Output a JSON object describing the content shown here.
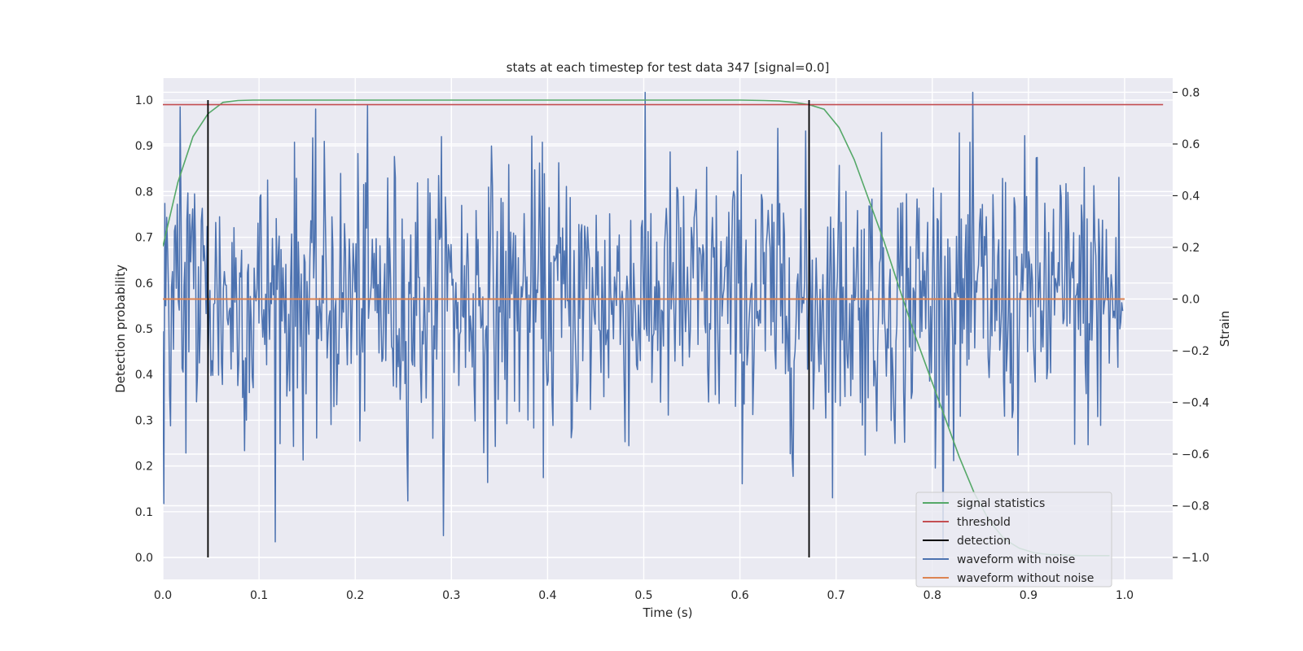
{
  "chart_data": {
    "type": "line",
    "title": "stats at each timestep for test data 347 [signal=0.0]",
    "xlabel": "Time (s)",
    "ylabel": "Detection probability",
    "ylabel_right": "Strain",
    "xlim": [
      0.0,
      1.05
    ],
    "ylim": [
      -0.048,
      1.048
    ],
    "ylim_right": [
      -1.085,
      0.855
    ],
    "x_ticks": [
      "0.0",
      "0.1",
      "0.2",
      "0.3",
      "0.4",
      "0.5",
      "0.6",
      "0.7",
      "0.8",
      "0.9",
      "1.0"
    ],
    "y_ticks": [
      "0.0",
      "0.1",
      "0.2",
      "0.3",
      "0.4",
      "0.5",
      "0.6",
      "0.7",
      "0.8",
      "0.9",
      "1.0"
    ],
    "y_ticks_right": [
      "−1.0",
      "−0.8",
      "−0.6",
      "−0.4",
      "−0.2",
      "0.0",
      "0.2",
      "0.4",
      "0.6",
      "0.8"
    ],
    "grid": true,
    "legend_position": "bottom-right",
    "series": [
      {
        "name": "signal statistics",
        "color": "#55a868",
        "axis": "left",
        "x": [
          0.0,
          0.0156,
          0.0313,
          0.0469,
          0.0625,
          0.0781,
          0.0938,
          0.1094,
          0.125,
          0.2,
          0.3,
          0.4,
          0.5,
          0.6,
          0.625,
          0.6406,
          0.6563,
          0.6719,
          0.6875,
          0.7031,
          0.7188,
          0.7344,
          0.75,
          0.7656,
          0.7813,
          0.7969,
          0.8125,
          0.8281,
          0.8438,
          0.8594,
          0.875,
          0.8906,
          0.9063,
          0.9219,
          0.9375,
          0.9531,
          0.9688,
          0.9844
        ],
        "y": [
          0.68,
          0.82,
          0.92,
          0.97,
          0.995,
          0.999,
          1.0,
          1.0,
          1.0,
          1.0,
          1.0,
          1.0,
          1.0,
          1.0,
          0.999,
          0.998,
          0.995,
          0.99,
          0.98,
          0.94,
          0.87,
          0.78,
          0.69,
          0.59,
          0.49,
          0.4,
          0.31,
          0.22,
          0.14,
          0.08,
          0.04,
          0.02,
          0.01,
          0.006,
          0.005,
          0.004,
          0.004,
          0.004
        ]
      },
      {
        "name": "threshold",
        "color": "#c44e52",
        "axis": "left",
        "x": [
          0.0,
          1.04
        ],
        "y": [
          0.99,
          0.99
        ]
      },
      {
        "name": "detection",
        "color": "#000000",
        "axis": "left",
        "segments": [
          {
            "x": 0.0469,
            "y0": 0.0,
            "y1": 1.0
          },
          {
            "x": 0.6719,
            "y0": 0.0,
            "y1": 1.0
          }
        ]
      },
      {
        "name": "waveform with noise",
        "color": "#4c72b0",
        "axis": "right",
        "x_start": 0.0,
        "x_end": 0.998,
        "noise_seed": 347,
        "noise_points": 1000,
        "y_range": [
          -1.0,
          0.8
        ]
      },
      {
        "name": "waveform without noise",
        "color": "#dd8452",
        "axis": "right",
        "x": [
          0.0,
          1.0
        ],
        "y": [
          0.0,
          0.0
        ]
      }
    ]
  }
}
